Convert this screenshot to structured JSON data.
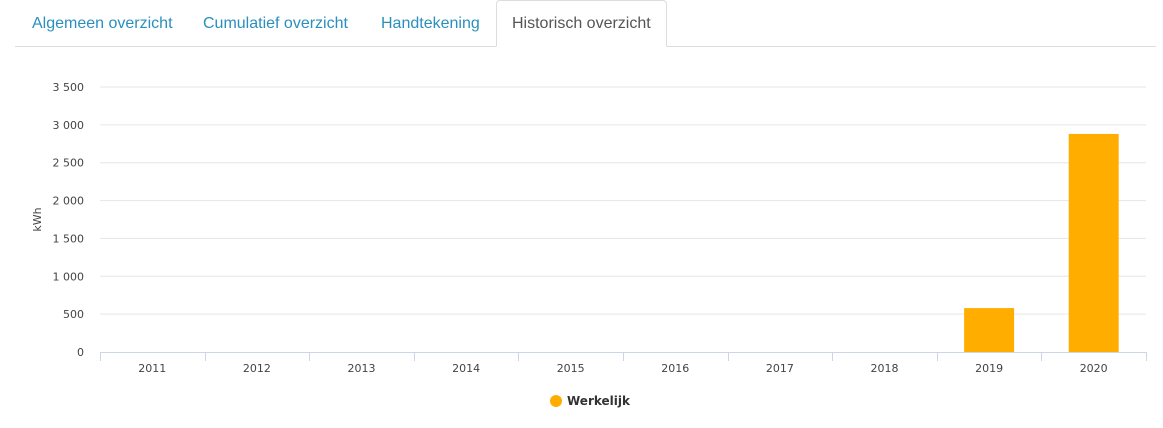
{
  "tabs": [
    {
      "label": "Algemeen overzicht",
      "active": false
    },
    {
      "label": "Cumulatief overzicht",
      "active": false
    },
    {
      "label": "Handtekening",
      "active": false
    },
    {
      "label": "Historisch overzicht",
      "active": true
    }
  ],
  "colors": {
    "bar": "#ffae00",
    "tab_link": "#2a8fbd",
    "grid": "#e6e6e6"
  },
  "chart_data": {
    "type": "bar",
    "categories": [
      "2011",
      "2012",
      "2013",
      "2014",
      "2015",
      "2016",
      "2017",
      "2018",
      "2019",
      "2020"
    ],
    "series": [
      {
        "name": "Werkelijk",
        "values": [
          0,
          0,
          0,
          0,
          0,
          0,
          0,
          0,
          580,
          2880
        ]
      }
    ],
    "ylabel": "kWh",
    "ylim": [
      0,
      3500
    ],
    "yticks": [
      0,
      500,
      1000,
      1500,
      2000,
      2500,
      3000,
      3500
    ],
    "ytick_labels": [
      "0",
      "500",
      "1 000",
      "1 500",
      "2 000",
      "2 500",
      "3 000",
      "3 500"
    ],
    "grid": true,
    "legend": "bottom-center"
  }
}
